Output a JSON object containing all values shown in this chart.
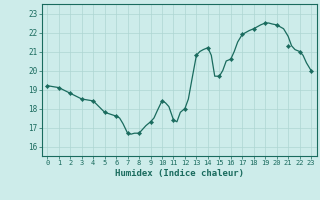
{
  "x": [
    0,
    0.5,
    1,
    1.5,
    2,
    2.5,
    3,
    3.5,
    4,
    4.5,
    5,
    5.5,
    6,
    6.3,
    6.6,
    7,
    7.3,
    7.6,
    8,
    8.3,
    8.6,
    9,
    9.3,
    9.6,
    10,
    10.3,
    10.6,
    11,
    11.3,
    11.6,
    12,
    12.3,
    12.6,
    13,
    13.3,
    13.6,
    14,
    14.3,
    14.6,
    15,
    15.3,
    15.6,
    16,
    16.3,
    16.6,
    17,
    17.3,
    17.6,
    18,
    18.3,
    18.6,
    19,
    19.3,
    19.6,
    20,
    20.3,
    20.6,
    21,
    21.3,
    21.6,
    22,
    22.3,
    22.6,
    23
  ],
  "y": [
    19.2,
    19.15,
    19.1,
    18.95,
    18.8,
    18.65,
    18.5,
    18.45,
    18.4,
    18.1,
    17.8,
    17.7,
    17.6,
    17.5,
    17.2,
    16.7,
    16.65,
    16.7,
    16.7,
    16.9,
    17.1,
    17.3,
    17.5,
    17.9,
    18.4,
    18.3,
    18.1,
    17.4,
    17.3,
    17.8,
    18.0,
    18.5,
    19.5,
    20.8,
    21.0,
    21.1,
    21.2,
    20.8,
    19.7,
    19.7,
    20.0,
    20.5,
    20.6,
    21.0,
    21.5,
    21.9,
    22.0,
    22.1,
    22.2,
    22.3,
    22.4,
    22.5,
    22.5,
    22.45,
    22.4,
    22.3,
    22.2,
    21.8,
    21.3,
    21.1,
    21.0,
    20.8,
    20.4,
    20.0
  ],
  "markers_x": [
    0,
    1,
    2,
    3,
    4,
    5,
    6,
    7,
    8,
    9,
    10,
    11,
    12,
    13,
    14,
    15,
    16,
    17,
    18,
    19,
    20,
    21,
    22,
    23
  ],
  "markers_y": [
    19.2,
    19.1,
    18.8,
    18.5,
    18.4,
    17.8,
    17.6,
    16.7,
    16.7,
    17.3,
    18.4,
    17.4,
    18.0,
    20.8,
    21.2,
    19.7,
    20.6,
    21.9,
    22.2,
    22.5,
    22.4,
    21.3,
    21.0,
    20.0
  ],
  "xlabel": "Humidex (Indice chaleur)",
  "xlim": [
    -0.5,
    23.5
  ],
  "ylim": [
    15.5,
    23.5
  ],
  "yticks": [
    16,
    17,
    18,
    19,
    20,
    21,
    22,
    23
  ],
  "xticks": [
    0,
    1,
    2,
    3,
    4,
    5,
    6,
    7,
    8,
    9,
    10,
    11,
    12,
    13,
    14,
    15,
    16,
    17,
    18,
    19,
    20,
    21,
    22,
    23
  ],
  "line_color": "#1a6b5e",
  "marker_color": "#1a6b5e",
  "bg_color": "#cdecea",
  "grid_color": "#aed6d3",
  "axes_color": "#1a6b5e",
  "tick_label_color": "#1a6b5e",
  "xlabel_color": "#1a6b5e"
}
